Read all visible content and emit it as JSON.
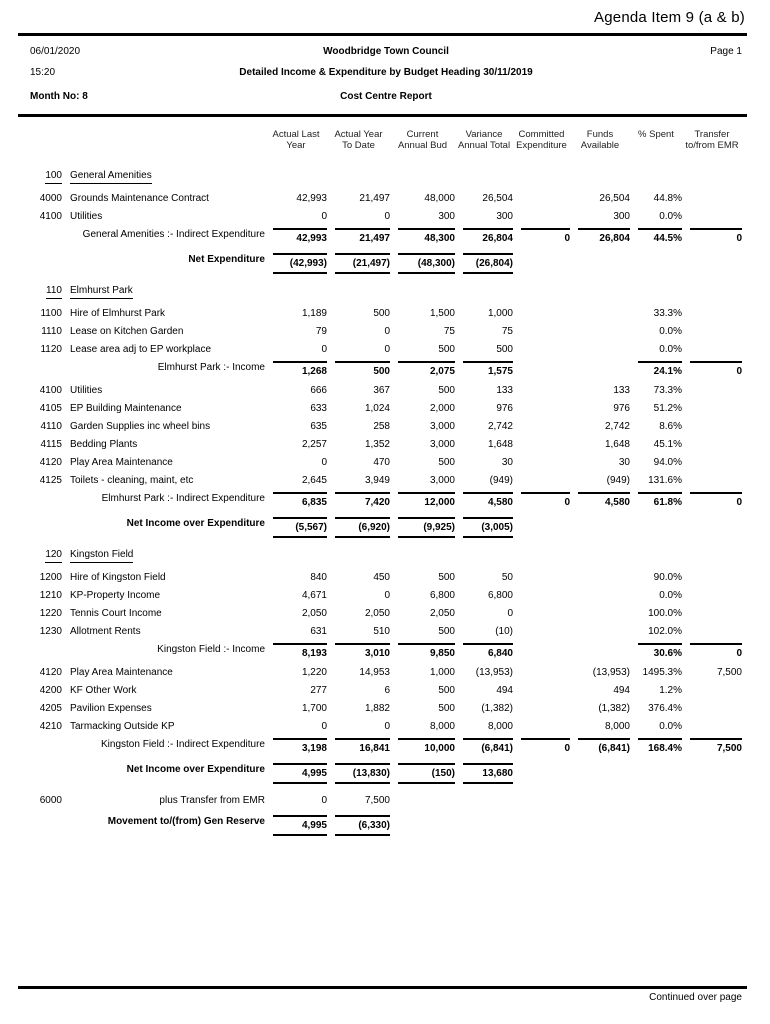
{
  "header": {
    "agenda": "Agenda Item 9 (a & b)",
    "date": "06/01/2020",
    "time": "15:20",
    "month_no": "Month No: 8",
    "council": "Woodbridge Town Council",
    "page": "Page 1",
    "report_title": "Detailed Income & Expenditure by Budget Heading 30/11/2019",
    "report_subtitle": "Cost Centre Report"
  },
  "table": {
    "columns": [
      {
        "key": "actual-last-year",
        "l1": "Actual Last",
        "l2": "Year"
      },
      {
        "key": "actual-year-to-date",
        "l1": "Actual Year",
        "l2": "To Date"
      },
      {
        "key": "current-annual-bud",
        "l1": "Current",
        "l2": "Annual Bud"
      },
      {
        "key": "variance-annual-total",
        "l1": "Variance",
        "l2": "Annual Total"
      },
      {
        "key": "committed-expenditure",
        "l1": "Committed",
        "l2": "Expenditure"
      },
      {
        "key": "funds-available",
        "l1": "Funds",
        "l2": "Available"
      },
      {
        "key": "percent-spent",
        "l1": "% Spent",
        "l2": ""
      },
      {
        "key": "transfer-emr",
        "l1": "Transfer",
        "l2": "to/from EMR"
      }
    ],
    "rows": [
      {
        "type": "section",
        "code": "100",
        "label": "General Amenities"
      },
      {
        "type": "detail",
        "code": "4000",
        "label": "Grounds Maintenance Contract",
        "v": [
          "42,993",
          "21,497",
          "48,000",
          "26,504",
          "",
          "26,504",
          "44.8%",
          ""
        ]
      },
      {
        "type": "detail",
        "code": "4100",
        "label": "Utilities",
        "v": [
          "0",
          "0",
          "300",
          "300",
          "",
          "300",
          "0.0%",
          ""
        ]
      },
      {
        "type": "subtotal",
        "label": "General Amenities :- Indirect Expenditure",
        "v": [
          "42,993",
          "21,497",
          "48,300",
          "26,804",
          "0",
          "26,804",
          "44.5%",
          "0"
        ]
      },
      {
        "type": "net",
        "label": "Net Expenditure",
        "v": [
          "(42,993)",
          "(21,497)",
          "(48,300)",
          "(26,804)",
          "",
          "",
          "",
          ""
        ]
      },
      {
        "type": "section",
        "code": "110",
        "label": "Elmhurst Park"
      },
      {
        "type": "detail",
        "code": "1100",
        "label": "Hire of Elmhurst Park",
        "v": [
          "1,189",
          "500",
          "1,500",
          "1,000",
          "",
          "",
          "33.3%",
          ""
        ]
      },
      {
        "type": "detail",
        "code": "1110",
        "label": "Lease on Kitchen Garden",
        "v": [
          "79",
          "0",
          "75",
          "75",
          "",
          "",
          "0.0%",
          ""
        ]
      },
      {
        "type": "detail",
        "code": "1120",
        "label": "Lease area adj to EP workplace",
        "v": [
          "0",
          "0",
          "500",
          "500",
          "",
          "",
          "0.0%",
          ""
        ]
      },
      {
        "type": "subtotal",
        "label": "Elmhurst Park :- Income",
        "v": [
          "1,268",
          "500",
          "2,075",
          "1,575",
          "",
          "",
          "24.1%",
          "0"
        ]
      },
      {
        "type": "detail",
        "code": "4100",
        "label": "Utilities",
        "v": [
          "666",
          "367",
          "500",
          "133",
          "",
          "133",
          "73.3%",
          ""
        ]
      },
      {
        "type": "detail",
        "code": "4105",
        "label": "EP Building Maintenance",
        "v": [
          "633",
          "1,024",
          "2,000",
          "976",
          "",
          "976",
          "51.2%",
          ""
        ]
      },
      {
        "type": "detail",
        "code": "4110",
        "label": "Garden Supplies inc wheel bins",
        "v": [
          "635",
          "258",
          "3,000",
          "2,742",
          "",
          "2,742",
          "8.6%",
          ""
        ]
      },
      {
        "type": "detail",
        "code": "4115",
        "label": "Bedding Plants",
        "v": [
          "2,257",
          "1,352",
          "3,000",
          "1,648",
          "",
          "1,648",
          "45.1%",
          ""
        ]
      },
      {
        "type": "detail",
        "code": "4120",
        "label": "Play Area Maintenance",
        "v": [
          "0",
          "470",
          "500",
          "30",
          "",
          "30",
          "94.0%",
          ""
        ]
      },
      {
        "type": "detail",
        "code": "4125",
        "label": "Toilets - cleaning, maint, etc",
        "v": [
          "2,645",
          "3,949",
          "3,000",
          "(949)",
          "",
          "(949)",
          "131.6%",
          ""
        ]
      },
      {
        "type": "subtotal",
        "label": "Elmhurst Park :- Indirect Expenditure",
        "v": [
          "6,835",
          "7,420",
          "12,000",
          "4,580",
          "0",
          "4,580",
          "61.8%",
          "0"
        ]
      },
      {
        "type": "net",
        "label": "Net Income over Expenditure",
        "v": [
          "(5,567)",
          "(6,920)",
          "(9,925)",
          "(3,005)",
          "",
          "",
          "",
          ""
        ]
      },
      {
        "type": "section",
        "code": "120",
        "label": "Kingston Field"
      },
      {
        "type": "detail",
        "code": "1200",
        "label": "Hire of Kingston Field",
        "v": [
          "840",
          "450",
          "500",
          "50",
          "",
          "",
          "90.0%",
          ""
        ]
      },
      {
        "type": "detail",
        "code": "1210",
        "label": "KP-Property Income",
        "v": [
          "4,671",
          "0",
          "6,800",
          "6,800",
          "",
          "",
          "0.0%",
          ""
        ]
      },
      {
        "type": "detail",
        "code": "1220",
        "label": "Tennis Court Income",
        "v": [
          "2,050",
          "2,050",
          "2,050",
          "0",
          "",
          "",
          "100.0%",
          ""
        ]
      },
      {
        "type": "detail",
        "code": "1230",
        "label": "Allotment Rents",
        "v": [
          "631",
          "510",
          "500",
          "(10)",
          "",
          "",
          "102.0%",
          ""
        ]
      },
      {
        "type": "subtotal",
        "label": "Kingston Field :- Income",
        "v": [
          "8,193",
          "3,010",
          "9,850",
          "6,840",
          "",
          "",
          "30.6%",
          "0"
        ]
      },
      {
        "type": "detail",
        "code": "4120",
        "label": "Play Area Maintenance",
        "v": [
          "1,220",
          "14,953",
          "1,000",
          "(13,953)",
          "",
          "(13,953)",
          "1495.3%",
          "7,500"
        ]
      },
      {
        "type": "detail",
        "code": "4200",
        "label": "KF Other Work",
        "v": [
          "277",
          "6",
          "500",
          "494",
          "",
          "494",
          "1.2%",
          ""
        ]
      },
      {
        "type": "detail",
        "code": "4205",
        "label": "Pavilion Expenses",
        "v": [
          "1,700",
          "1,882",
          "500",
          "(1,382)",
          "",
          "(1,382)",
          "376.4%",
          ""
        ]
      },
      {
        "type": "detail",
        "code": "4210",
        "label": "Tarmacking Outside KP",
        "v": [
          "0",
          "0",
          "8,000",
          "8,000",
          "",
          "8,000",
          "0.0%",
          ""
        ]
      },
      {
        "type": "subtotal",
        "label": "Kingston Field :- Indirect Expenditure",
        "v": [
          "3,198",
          "16,841",
          "10,000",
          "(6,841)",
          "0",
          "(6,841)",
          "168.4%",
          "7,500"
        ]
      },
      {
        "type": "net",
        "label": "Net Income over Expenditure",
        "v": [
          "4,995",
          "(13,830)",
          "(150)",
          "13,680",
          "",
          "",
          "",
          ""
        ]
      },
      {
        "type": "transfer",
        "code": "6000",
        "label": "plus Transfer from EMR",
        "v": [
          "0",
          "7,500",
          "",
          "",
          "",
          "",
          "",
          ""
        ]
      },
      {
        "type": "net",
        "label": "Movement to/(from) Gen Reserve",
        "v": [
          "4,995",
          "(6,330)",
          "",
          "",
          "",
          "",
          "",
          ""
        ]
      }
    ]
  },
  "footer": {
    "continued": "Continued over page"
  }
}
